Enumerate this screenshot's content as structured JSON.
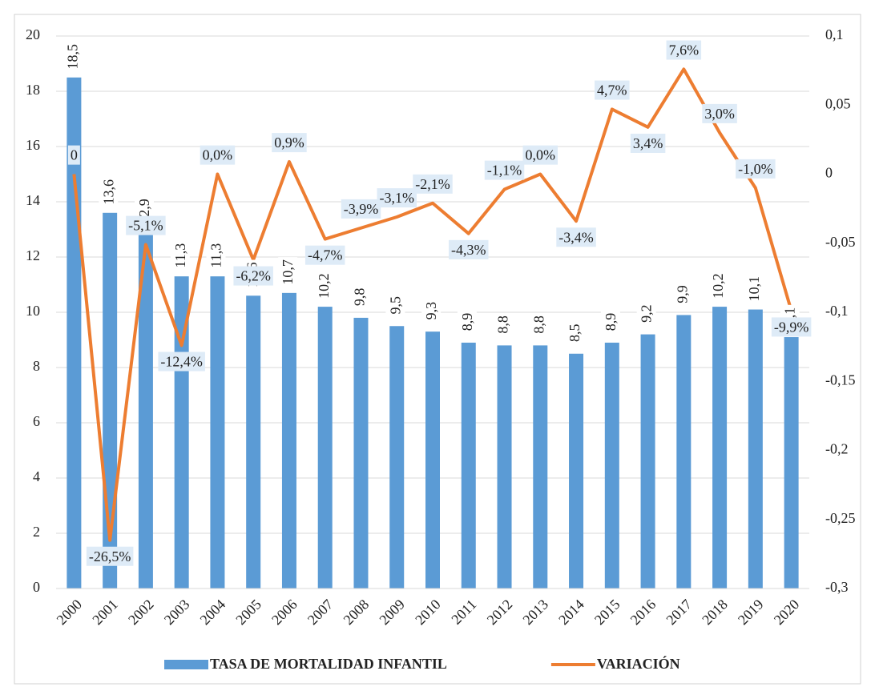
{
  "chart_data": {
    "type": "bar_line",
    "categories": [
      "2000",
      "2001",
      "2002",
      "2003",
      "2004",
      "2005",
      "2006",
      "2007",
      "2008",
      "2009",
      "2010",
      "2011",
      "2012",
      "2013",
      "2014",
      "2015",
      "2016",
      "2017",
      "2018",
      "2019",
      "2020"
    ],
    "series": [
      {
        "name": "TASA DE MORTALIDAD INFANTIL",
        "type": "bar",
        "color": "#5b9bd5",
        "values": [
          18.5,
          13.6,
          12.9,
          11.3,
          11.3,
          10.6,
          10.7,
          10.2,
          9.8,
          9.5,
          9.3,
          8.9,
          8.8,
          8.8,
          8.5,
          8.9,
          9.2,
          9.9,
          10.2,
          10.1,
          9.1
        ],
        "value_labels": [
          "18,5",
          "13,6",
          "12,9",
          "11,3",
          "11,3",
          "10,6",
          "10,7",
          "10,2",
          "9,8",
          "9,5",
          "9,3",
          "8,9",
          "8,8",
          "8,8",
          "8,5",
          "8,9",
          "9,2",
          "9,9",
          "10,2",
          "10,1",
          "9,1"
        ]
      },
      {
        "name": "VARIACIÓN",
        "type": "line",
        "axis": "y2",
        "color": "#ed7d31",
        "values": [
          0,
          -0.265,
          -0.051,
          -0.124,
          0.0,
          -0.062,
          0.009,
          -0.047,
          -0.039,
          -0.031,
          -0.021,
          -0.043,
          -0.011,
          0.0,
          -0.034,
          0.047,
          0.034,
          0.076,
          0.03,
          -0.01,
          -0.099
        ],
        "value_labels": [
          "0",
          "-26,5%",
          "-5,1%",
          "-12,4%",
          "0,0%",
          "-6,2%",
          "0,9%",
          "-4,7%",
          "-3,9%",
          "-3,1%",
          "-2,1%",
          "-4,3%",
          "-1,1%",
          "0,0%",
          "-3,4%",
          "4,7%",
          "3,4%",
          "7,6%",
          "3,0%",
          "-1,0%",
          "-9,9%"
        ]
      }
    ],
    "ylim": [
      0,
      20
    ],
    "yticks": [
      0,
      2,
      4,
      6,
      8,
      10,
      12,
      14,
      16,
      18,
      20
    ],
    "y2lim": [
      -0.3,
      0.1
    ],
    "y2ticks": [
      {
        "value": -0.3,
        "label": "-0,3"
      },
      {
        "value": -0.25,
        "label": "-0,25"
      },
      {
        "value": -0.2,
        "label": "-0,2"
      },
      {
        "value": -0.15,
        "label": "-0,15"
      },
      {
        "value": -0.1,
        "label": "-0,1"
      },
      {
        "value": -0.05,
        "label": "-0,05"
      },
      0,
      {
        "value": 0.05,
        "label": "0,05"
      },
      {
        "value": 0.1,
        "label": "0,1"
      }
    ],
    "grid": true,
    "legend": "bottom"
  }
}
